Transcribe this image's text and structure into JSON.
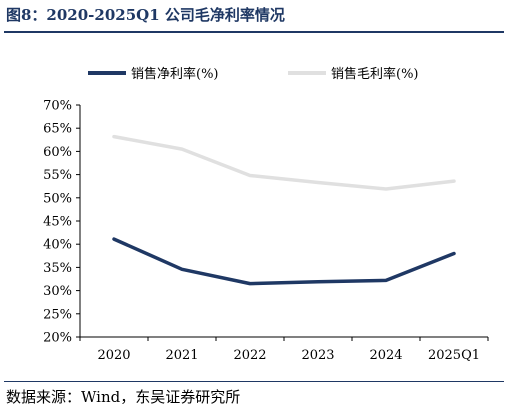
{
  "figure_title": "图8：2020-2025Q1 公司毛净利率情况",
  "source_note": "数据来源：Wind，东吴证券研究所",
  "colors": {
    "title": "#1f3864",
    "net_margin": "#1f3864",
    "gross_margin": "#e0e0e0",
    "axis": "#000000"
  },
  "chart_data": {
    "type": "line",
    "x": [
      "2020",
      "2021",
      "2022",
      "2023",
      "2024",
      "2025Q1"
    ],
    "series": [
      {
        "name": "销售净利率(%)",
        "values": [
          41.1,
          34.6,
          31.5,
          31.9,
          32.2,
          38.0
        ],
        "color": "#1f3864"
      },
      {
        "name": "销售毛利率(%)",
        "values": [
          63.2,
          60.5,
          54.8,
          53.3,
          51.9,
          53.6
        ],
        "color": "#e0e0e0"
      }
    ],
    "ylim": [
      20,
      70
    ],
    "ytick_step": 5,
    "yticks": [
      "20%",
      "25%",
      "30%",
      "35%",
      "40%",
      "45%",
      "50%",
      "55%",
      "60%",
      "65%",
      "70%"
    ],
    "legend_position": "top",
    "grid": false
  }
}
